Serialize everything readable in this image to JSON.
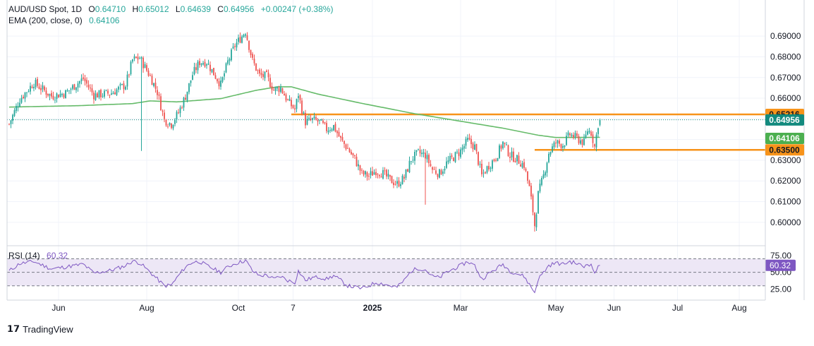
{
  "header": {
    "symbol": "AUD/USD Spot, 1D",
    "o_label": "O",
    "open": "0.64710",
    "h_label": "H",
    "high": "0.65012",
    "l_label": "L",
    "low": "0.64639",
    "c_label": "C",
    "close": "0.64956",
    "change": "+0.00247 (+0.38%)",
    "ema_label": "EMA (200, close, 0)",
    "ema_value": "0.64106",
    "rsi_label": "RSI (14)",
    "rsi_value": "60.32"
  },
  "footer": {
    "brand": "TradingView"
  },
  "colors": {
    "up": "#26a69a",
    "down": "#ef5350",
    "ema": "#66bb6a",
    "level": "#f7931a",
    "rsi": "#7e57c2",
    "rsi_band": "#ede7f6",
    "price_tag": "#138a7e",
    "ema_tag": "#4caf50"
  },
  "chart_data": {
    "type": "candlestick",
    "y_ticks": [
      "0.69000",
      "0.68000",
      "0.67000",
      "0.66000",
      "0.65000",
      "0.64000",
      "0.63000",
      "0.62000",
      "0.61000",
      "0.60000"
    ],
    "ylim": [
      0.5955,
      0.6945
    ],
    "x_ticks": [
      "Jun",
      "Aug",
      "Oct",
      "7",
      "2025",
      "Mar",
      "May",
      "Jun",
      "Jul",
      "Aug"
    ],
    "price_tags": {
      "resistance": "0.65216",
      "last": "0.64956",
      "ema": "0.64106",
      "support": "0.63500"
    },
    "levels": [
      0.65216,
      0.635
    ],
    "last_price": 0.64956,
    "ohlc_last": {
      "open": 0.6471,
      "high": 0.65012,
      "low": 0.64639,
      "close": 0.64956
    },
    "close_anchors": [
      [
        0,
        0.6475
      ],
      [
        6,
        0.6595
      ],
      [
        14,
        0.6675
      ],
      [
        24,
        0.661
      ],
      [
        32,
        0.6625
      ],
      [
        42,
        0.6695
      ],
      [
        48,
        0.6615
      ],
      [
        58,
        0.6625
      ],
      [
        66,
        0.6665
      ],
      [
        70,
        0.6785
      ],
      [
        74,
        0.6795
      ],
      [
        80,
        0.6705
      ],
      [
        84,
        0.663
      ],
      [
        88,
        0.6495
      ],
      [
        92,
        0.6475
      ],
      [
        96,
        0.653
      ],
      [
        100,
        0.661
      ],
      [
        104,
        0.6715
      ],
      [
        108,
        0.6775
      ],
      [
        112,
        0.6775
      ],
      [
        116,
        0.672
      ],
      [
        120,
        0.6665
      ],
      [
        124,
        0.6775
      ],
      [
        128,
        0.6855
      ],
      [
        132,
        0.69
      ],
      [
        134,
        0.6925
      ],
      [
        138,
        0.678
      ],
      [
        142,
        0.671
      ],
      [
        146,
        0.6705
      ],
      [
        150,
        0.664
      ],
      [
        154,
        0.665
      ],
      [
        158,
        0.6585
      ],
      [
        162,
        0.6545
      ],
      [
        164,
        0.662
      ],
      [
        166,
        0.6545
      ],
      [
        168,
        0.6485
      ],
      [
        172,
        0.6495
      ],
      [
        176,
        0.6485
      ],
      [
        180,
        0.645
      ],
      [
        184,
        0.6465
      ],
      [
        188,
        0.64
      ],
      [
        192,
        0.6355
      ],
      [
        196,
        0.6305
      ],
      [
        200,
        0.6235
      ],
      [
        204,
        0.6225
      ],
      [
        208,
        0.625
      ],
      [
        212,
        0.6235
      ],
      [
        216,
        0.6205
      ],
      [
        220,
        0.6185
      ],
      [
        224,
        0.6215
      ],
      [
        228,
        0.6305
      ],
      [
        232,
        0.6335
      ],
      [
        236,
        0.6325
      ],
      [
        240,
        0.6255
      ],
      [
        244,
        0.6235
      ],
      [
        248,
        0.6285
      ],
      [
        252,
        0.6315
      ],
      [
        256,
        0.6345
      ],
      [
        260,
        0.6395
      ],
      [
        264,
        0.6365
      ],
      [
        268,
        0.6225
      ],
      [
        272,
        0.6275
      ],
      [
        276,
        0.6315
      ],
      [
        280,
        0.6385
      ],
      [
        284,
        0.6325
      ],
      [
        288,
        0.6305
      ],
      [
        292,
        0.6275
      ],
      [
        295,
        0.6165
      ],
      [
        297,
        0.6055
      ],
      [
        298,
        0.5985
      ],
      [
        300,
        0.6135
      ],
      [
        303,
        0.6225
      ],
      [
        306,
        0.6335
      ],
      [
        310,
        0.6385
      ],
      [
        314,
        0.6375
      ],
      [
        318,
        0.6425
      ],
      [
        322,
        0.6405
      ],
      [
        326,
        0.6385
      ],
      [
        328,
        0.6445
      ],
      [
        330,
        0.6435
      ],
      [
        332,
        0.6365
      ],
      [
        334,
        0.6475
      ],
      [
        335,
        0.64956
      ]
    ],
    "ema_values": [
      [
        0,
        0.6557
      ],
      [
        40,
        0.6564
      ],
      [
        70,
        0.6574
      ],
      [
        80,
        0.6587
      ],
      [
        95,
        0.6582
      ],
      [
        120,
        0.6598
      ],
      [
        140,
        0.6638
      ],
      [
        152,
        0.6655
      ],
      [
        160,
        0.6655
      ],
      [
        175,
        0.662
      ],
      [
        200,
        0.6575
      ],
      [
        230,
        0.6525
      ],
      [
        255,
        0.649
      ],
      [
        280,
        0.6455
      ],
      [
        300,
        0.6421
      ],
      [
        310,
        0.641
      ],
      [
        335,
        0.64106
      ]
    ],
    "rsi": {
      "levels": [
        70,
        50,
        30
      ],
      "tick_labels": [
        "75.00",
        "50.00",
        "25.00"
      ],
      "last": 60.32,
      "anchors": [
        [
          0,
          52
        ],
        [
          6,
          63
        ],
        [
          14,
          66
        ],
        [
          24,
          55
        ],
        [
          32,
          58
        ],
        [
          42,
          62
        ],
        [
          48,
          49
        ],
        [
          58,
          53
        ],
        [
          66,
          60
        ],
        [
          70,
          67
        ],
        [
          74,
          64
        ],
        [
          80,
          50
        ],
        [
          84,
          40
        ],
        [
          88,
          30
        ],
        [
          92,
          31
        ],
        [
          96,
          45
        ],
        [
          100,
          58
        ],
        [
          104,
          65
        ],
        [
          108,
          66
        ],
        [
          112,
          60
        ],
        [
          116,
          55
        ],
        [
          120,
          50
        ],
        [
          124,
          58
        ],
        [
          128,
          63
        ],
        [
          132,
          66
        ],
        [
          134,
          68
        ],
        [
          138,
          52
        ],
        [
          142,
          45
        ],
        [
          146,
          46
        ],
        [
          150,
          40
        ],
        [
          154,
          44
        ],
        [
          158,
          38
        ],
        [
          162,
          35
        ],
        [
          164,
          52
        ],
        [
          166,
          45
        ],
        [
          168,
          38
        ],
        [
          172,
          42
        ],
        [
          176,
          43
        ],
        [
          180,
          40
        ],
        [
          184,
          45
        ],
        [
          188,
          38
        ],
        [
          192,
          30
        ],
        [
          196,
          28
        ],
        [
          200,
          26
        ],
        [
          204,
          30
        ],
        [
          208,
          35
        ],
        [
          212,
          33
        ],
        [
          216,
          30
        ],
        [
          220,
          28
        ],
        [
          224,
          38
        ],
        [
          228,
          52
        ],
        [
          232,
          56
        ],
        [
          236,
          54
        ],
        [
          240,
          44
        ],
        [
          244,
          42
        ],
        [
          248,
          50
        ],
        [
          252,
          55
        ],
        [
          256,
          60
        ],
        [
          260,
          66
        ],
        [
          264,
          60
        ],
        [
          268,
          40
        ],
        [
          272,
          48
        ],
        [
          276,
          55
        ],
        [
          280,
          62
        ],
        [
          284,
          52
        ],
        [
          288,
          48
        ],
        [
          292,
          44
        ],
        [
          295,
          32
        ],
        [
          297,
          24
        ],
        [
          298,
          20
        ],
        [
          300,
          40
        ],
        [
          303,
          50
        ],
        [
          306,
          60
        ],
        [
          310,
          64
        ],
        [
          314,
          62
        ],
        [
          318,
          66
        ],
        [
          322,
          63
        ],
        [
          326,
          58
        ],
        [
          328,
          64
        ],
        [
          330,
          60
        ],
        [
          332,
          50
        ],
        [
          334,
          57
        ],
        [
          335,
          60.32
        ]
      ]
    }
  }
}
